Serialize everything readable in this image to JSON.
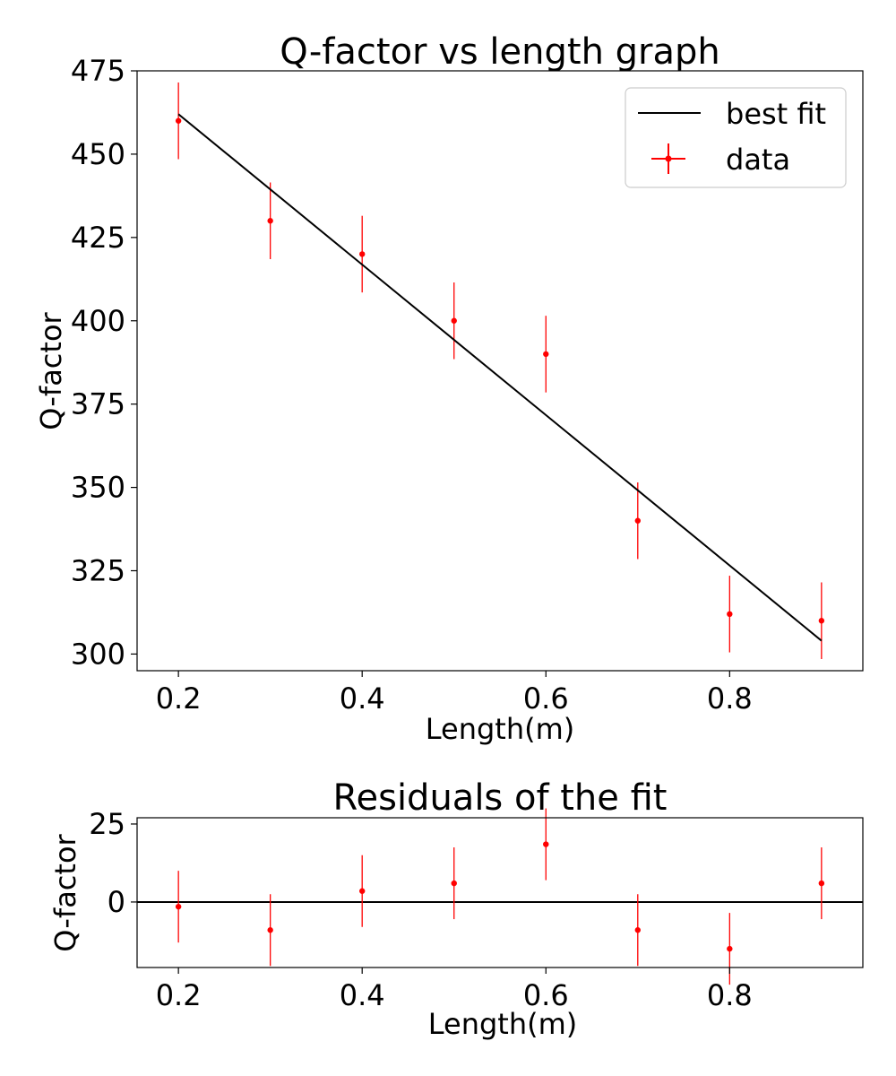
{
  "chart_data": [
    {
      "type": "scatter",
      "title": "Q-factor vs length graph",
      "xlabel": "Length(m)",
      "ylabel": "Q-factor",
      "xlim": [
        0.155,
        0.945
      ],
      "ylim": [
        295,
        475
      ],
      "xticks": [
        "0.2",
        "0.4",
        "0.6",
        "0.8"
      ],
      "yticks": [
        "300",
        "325",
        "350",
        "375",
        "400",
        "425",
        "450",
        "475"
      ],
      "grid": false,
      "legend": {
        "placement": "top-right",
        "entries": [
          "best fit",
          "data"
        ]
      },
      "series": [
        {
          "name": "data",
          "kind": "errorbar",
          "color": "#ff0000",
          "x": [
            0.2,
            0.3,
            0.4,
            0.5,
            0.6,
            0.7,
            0.8,
            0.9
          ],
          "y": [
            460,
            430,
            420,
            400,
            390,
            340,
            312,
            310
          ],
          "yerr": [
            11.5,
            11.5,
            11.5,
            11.5,
            11.5,
            11.5,
            11.5,
            11.5
          ]
        },
        {
          "name": "best fit",
          "kind": "line",
          "color": "#000000",
          "x": [
            0.2,
            0.9
          ],
          "y": [
            462,
            304
          ]
        }
      ]
    },
    {
      "type": "scatter",
      "title": "Residuals of the fit",
      "xlabel": "Length(m)",
      "ylabel": "Q-factor",
      "xlim": [
        0.155,
        0.945
      ],
      "ylim": [
        -21,
        27
      ],
      "xticks": [
        "0.2",
        "0.4",
        "0.6",
        "0.8"
      ],
      "yticks": [
        "0",
        "25"
      ],
      "grid": false,
      "reference_line": {
        "y": 0,
        "color": "#000000"
      },
      "series": [
        {
          "kind": "errorbar",
          "color": "#ff0000",
          "x": [
            0.2,
            0.3,
            0.4,
            0.5,
            0.6,
            0.7,
            0.8,
            0.9
          ],
          "y": [
            -1.5,
            -9,
            3.5,
            6,
            18.5,
            -9,
            -15,
            6
          ],
          "yerr": [
            11.5,
            11.5,
            11.5,
            11.5,
            11.5,
            11.5,
            11.5,
            11.5
          ]
        }
      ]
    }
  ]
}
